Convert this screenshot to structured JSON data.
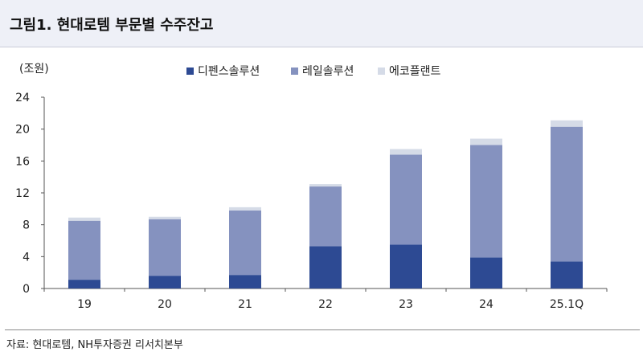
{
  "title": "그림1. 현대로템 부문별 수주잔고",
  "source": "자료: 현대로템, NH투자증권 리서치본부",
  "chart_data": {
    "type": "bar",
    "stacked": true,
    "unit_label": "(조원)",
    "categories": [
      "19",
      "20",
      "21",
      "22",
      "23",
      "24",
      "25.1Q"
    ],
    "series": [
      {
        "name": "디펜스솔루션",
        "color": "#2d4a93",
        "values": [
          1.1,
          1.6,
          1.7,
          5.3,
          5.5,
          3.9,
          3.4
        ]
      },
      {
        "name": "레일솔루션",
        "color": "#8592bf",
        "values": [
          7.4,
          7.1,
          8.1,
          7.5,
          11.3,
          14.1,
          16.9
        ]
      },
      {
        "name": "에코플랜트",
        "color": "#d5dbe7",
        "values": [
          0.4,
          0.3,
          0.4,
          0.3,
          0.7,
          0.8,
          0.8
        ]
      }
    ],
    "ylim": [
      0,
      24
    ],
    "yticks": [
      0,
      4,
      8,
      12,
      16,
      20,
      24
    ],
    "grid": false,
    "legend_position": "top"
  }
}
